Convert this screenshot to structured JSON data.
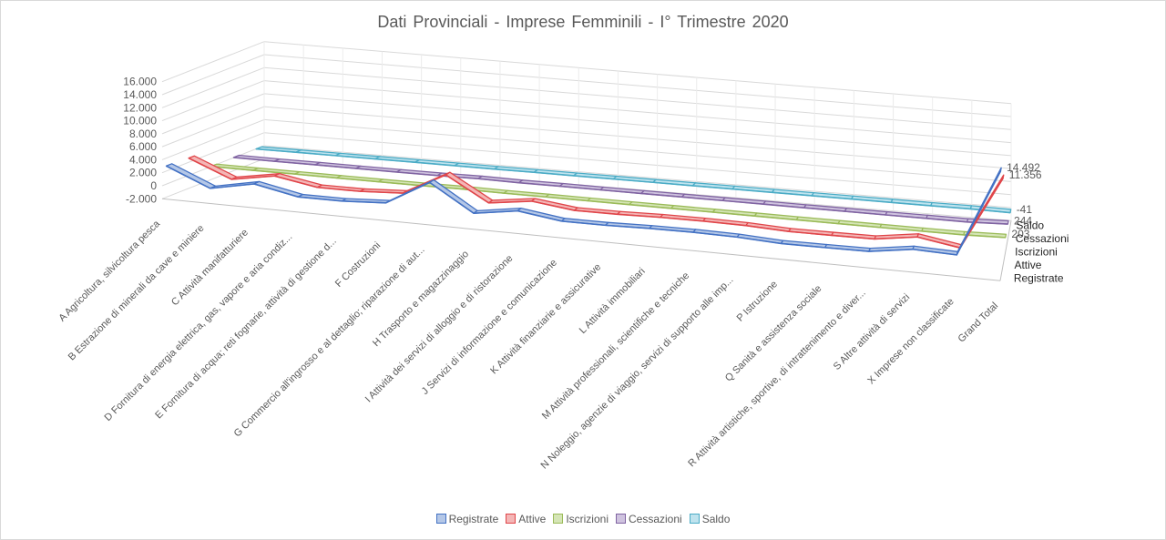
{
  "chart_data": {
    "type": "line",
    "title": "Dati Provinciali  - Imprese  Femminili  - I° Trimestre  2020",
    "categories": [
      "A Agricoltura, silvicoltura pesca",
      "B Estrazione di minerali da cave e miniere",
      "C Attività manifatturiere",
      "D Fornitura di energia elettrica, gas, vapore e aria condiz...",
      "E Fornitura di acqua; reti fognarie, attività di gestione d...",
      "F Costruzioni",
      "G Commercio all'ingrosso e al dettaglio; riparazione di aut...",
      "H Trasporto e magazzinaggio",
      "I Attività dei servizi di alloggio e di ristorazione",
      "J Servizi di informazione e comunicazione",
      "K Attività finanziarie e assicurative",
      "L Attività immobiliari",
      "M Attività professionali, scientifiche e tecniche",
      "N Noleggio, agenzie di viaggio, servizi di supporto alle imp...",
      "P Istruzione",
      "Q Sanità e assistenza sociale",
      "R Attività artistiche, sportive, di intrattenimento e diver...",
      "S Altre attività di servizi",
      "X Imprese non classificate",
      "Grand Total"
    ],
    "y_ticks": [
      "-2.000",
      "0",
      "2.000",
      "4.000",
      "6.000",
      "8.000",
      "10.000",
      "12.000",
      "14.000",
      "16.000"
    ],
    "ylim": [
      -2000,
      16000
    ],
    "grid": true,
    "legend_position": "bottom",
    "series": [
      {
        "name": "Registrate",
        "color": "#4472c4",
        "values": [
          2800,
          15,
          1350,
          20,
          30,
          400,
          4200,
          120,
          1150,
          230,
          250,
          420,
          480,
          400,
          70,
          100,
          170,
          1150,
          950,
          14492
        ]
      },
      {
        "name": "Attive",
        "color": "#e0464a",
        "values": [
          2650,
          12,
          1150,
          15,
          25,
          370,
          3800,
          110,
          1000,
          200,
          230,
          380,
          420,
          350,
          65,
          90,
          150,
          1080,
          30,
          11356
        ]
      },
      {
        "name": "Iscrizioni",
        "color": "#9bbb59",
        "values": [
          30,
          0,
          15,
          0,
          0,
          8,
          55,
          2,
          10,
          4,
          4,
          6,
          10,
          8,
          1,
          2,
          3,
          12,
          33,
          203
        ]
      },
      {
        "name": "Cessazioni",
        "color": "#8064a2",
        "values": [
          40,
          0,
          18,
          0,
          0,
          10,
          75,
          3,
          20,
          5,
          4,
          8,
          9,
          12,
          1,
          3,
          4,
          18,
          14,
          244
        ]
      },
      {
        "name": "Saldo",
        "color": "#4bacc6",
        "values": [
          -10,
          0,
          -3,
          0,
          0,
          -2,
          -20,
          -1,
          -10,
          -1,
          0,
          -2,
          1,
          -4,
          0,
          -1,
          -1,
          -6,
          19,
          -41
        ]
      }
    ],
    "end_labels": [
      {
        "series": "Registrate",
        "text": "14.492"
      },
      {
        "series": "Attive",
        "text": "11.356"
      },
      {
        "series": "Iscrizioni",
        "text": "203"
      },
      {
        "series": "Cessazioni",
        "text": "244"
      },
      {
        "series": "Saldo",
        "text": "-41"
      }
    ]
  }
}
